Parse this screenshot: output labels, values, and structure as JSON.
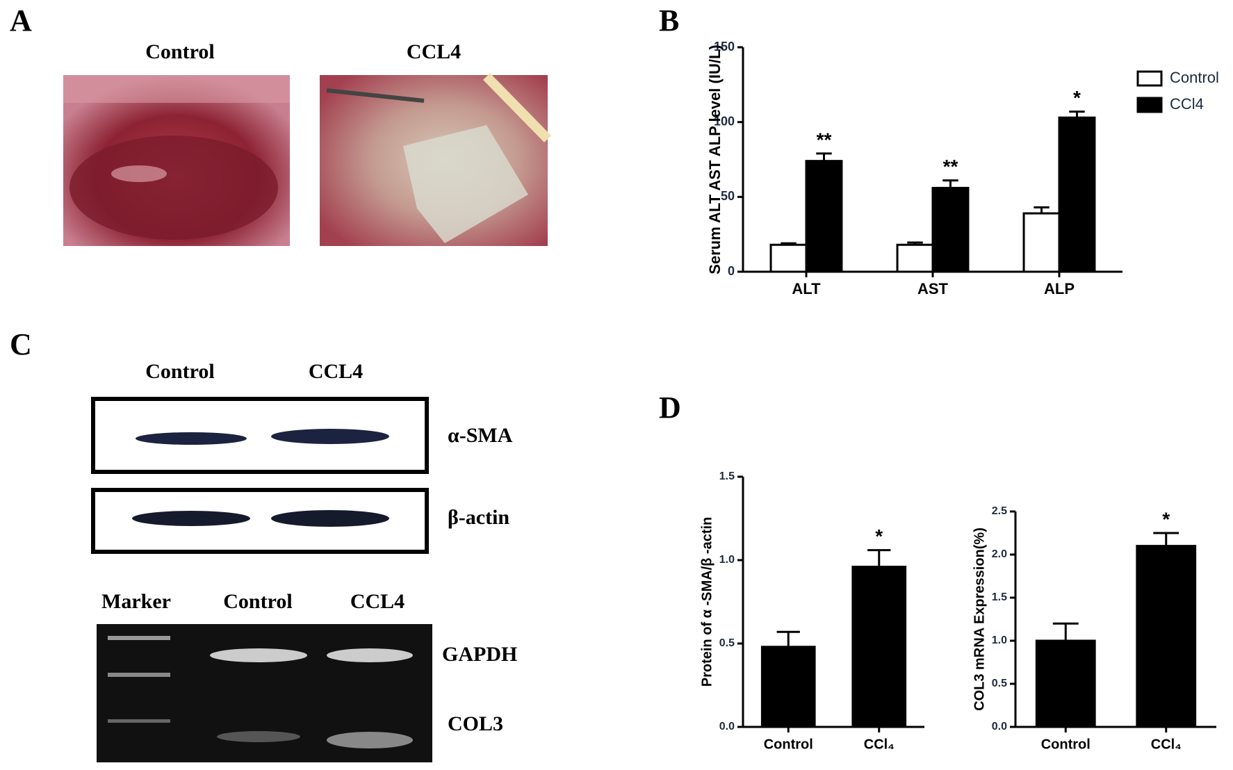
{
  "panels": [
    "A",
    "B",
    "C",
    "D"
  ],
  "panel_a": {
    "labels": [
      "Control",
      "CCL4"
    ]
  },
  "panel_c": {
    "blot_columns": [
      "Control",
      "CCL4"
    ],
    "blot_rows": [
      "α-SMA",
      "β-actin"
    ],
    "gel_columns": [
      "Marker",
      "Control",
      "CCL4"
    ],
    "gel_rows": [
      "GAPDH",
      "COL3"
    ]
  },
  "chart_data": [
    {
      "type": "bar",
      "y_label": "Serum ALT AST ALP level (IU/L)",
      "categories": [
        "ALT",
        "AST",
        "ALP"
      ],
      "series": [
        {
          "name": "Control",
          "color": "#ffffff",
          "values": [
            18,
            18,
            39
          ],
          "errors": [
            1,
            1.5,
            4
          ]
        },
        {
          "name": "CCl4",
          "color": "#000000",
          "values": [
            74,
            56,
            103
          ],
          "errors": [
            5,
            5,
            4
          ],
          "significance": [
            "**",
            "**",
            "*"
          ]
        }
      ],
      "ylim": [
        0,
        150
      ],
      "yticks": [
        0,
        50,
        100,
        150
      ],
      "legend": "upper right"
    },
    {
      "type": "bar",
      "y_label": "Protein of α -SMA/β -actin",
      "categories": [
        "Control",
        "CCl₄"
      ],
      "values": [
        0.48,
        0.96
      ],
      "errors": [
        0.09,
        0.1
      ],
      "significance": [
        null,
        "*"
      ],
      "color": "#000000",
      "ylim": [
        0,
        1.5
      ],
      "yticks": [
        {
          "value": 0,
          "label": "0.0"
        },
        0.5,
        {
          "value": 1,
          "label": "1.0"
        },
        1.5
      ]
    },
    {
      "type": "bar",
      "y_label": "COL3 mRNA Expression(%)",
      "categories": [
        "Control",
        "CCl₄"
      ],
      "values": [
        1.0,
        2.1
      ],
      "errors": [
        0.2,
        0.15
      ],
      "significance": [
        null,
        "*"
      ],
      "color": "#000000",
      "ylim": [
        0,
        2.5
      ],
      "yticks": [
        {
          "value": 0,
          "label": "0.0"
        },
        0.5,
        {
          "value": 1,
          "label": "1.0"
        },
        1.5,
        {
          "value": 2,
          "label": "2.0"
        },
        2.5
      ]
    }
  ]
}
